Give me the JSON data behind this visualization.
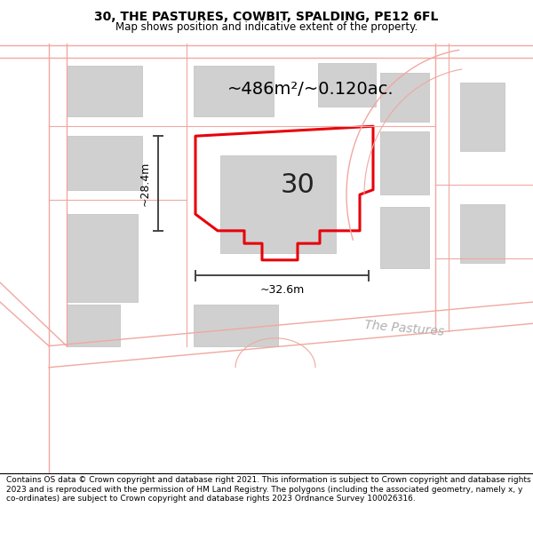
{
  "title": "30, THE PASTURES, COWBIT, SPALDING, PE12 6FL",
  "subtitle": "Map shows position and indicative extent of the property.",
  "footer": "Contains OS data © Crown copyright and database right 2021. This information is subject to Crown copyright and database rights 2023 and is reproduced with the permission of HM Land Registry. The polygons (including the associated geometry, namely x, y co-ordinates) are subject to Crown copyright and database rights 2023 Ordnance Survey 100026316.",
  "area_label": "~486m²/~0.120ac.",
  "number_label": "30",
  "width_label": "~32.6m",
  "height_label": "~28.4m",
  "street_label": "The Pastures",
  "plot_color": "#e8000a",
  "plot_linewidth": 2.2,
  "building_color": "#d0d0d0",
  "building_edge": "#c0c0c0",
  "road_color": "#f0a8a0",
  "road_fill": "#f8e8e6",
  "dim_color": "#444444",
  "title_fontsize": 10,
  "subtitle_fontsize": 8.5,
  "footer_fontsize": 6.5,
  "area_fontsize": 14,
  "number_fontsize": 22,
  "dim_fontsize": 9,
  "street_fontsize": 10
}
